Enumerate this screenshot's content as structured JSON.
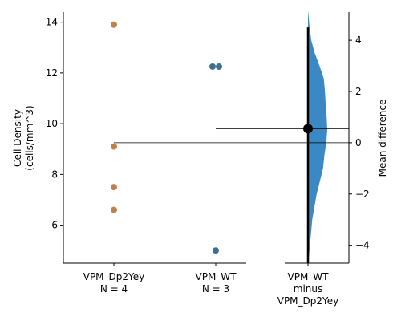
{
  "chart_data": [
    {
      "type": "scatter",
      "ylabel_lines": [
        "Cell Density",
        "(cells/mm^3)"
      ],
      "ylim": [
        4.5,
        14.4
      ],
      "yticks": [
        6,
        8,
        10,
        12,
        14
      ],
      "grid": false,
      "groups": [
        {
          "label_lines": [
            "VPM_Dp2Yey",
            "N = 4"
          ],
          "color": "#c0804a",
          "values": [
            13.9,
            9.1,
            7.5,
            6.6
          ]
        },
        {
          "label_lines": [
            "VPM_WT",
            "N = 3"
          ],
          "color": "#3f6e8e",
          "values": [
            12.25,
            12.25,
            5.0
          ]
        }
      ]
    },
    {
      "type": "distribution",
      "xlabel_lines": [
        "VPM_WT",
        "minus",
        "VPM_Dp2Yey"
      ],
      "ylabel": "Mean difference",
      "ylim": [
        -4.7,
        5.1
      ],
      "yticks": [
        -4,
        -2,
        0,
        2,
        4
      ],
      "mean_difference": 0.55,
      "ci": [
        -4.7,
        4.5
      ],
      "color": "#3a88c4",
      "density_profile": [
        [
          -4.7,
          0.02
        ],
        [
          -4.0,
          0.1
        ],
        [
          -3.0,
          0.22
        ],
        [
          -2.0,
          0.45
        ],
        [
          -1.5,
          0.62
        ],
        [
          -1.0,
          0.78
        ],
        [
          -0.5,
          0.85
        ],
        [
          0.0,
          0.95
        ],
        [
          0.5,
          1.0
        ],
        [
          1.0,
          0.97
        ],
        [
          1.5,
          0.92
        ],
        [
          2.0,
          0.88
        ],
        [
          2.5,
          0.82
        ],
        [
          3.0,
          0.6
        ],
        [
          3.5,
          0.35
        ],
        [
          4.0,
          0.17
        ],
        [
          4.5,
          0.08
        ],
        [
          5.1,
          0.01
        ]
      ],
      "reference_lines": [
        {
          "group": "VPM_Dp2Yey",
          "mean_difference": 0.0
        },
        {
          "group": "VPM_WT",
          "mean_difference": 0.55
        }
      ]
    }
  ]
}
